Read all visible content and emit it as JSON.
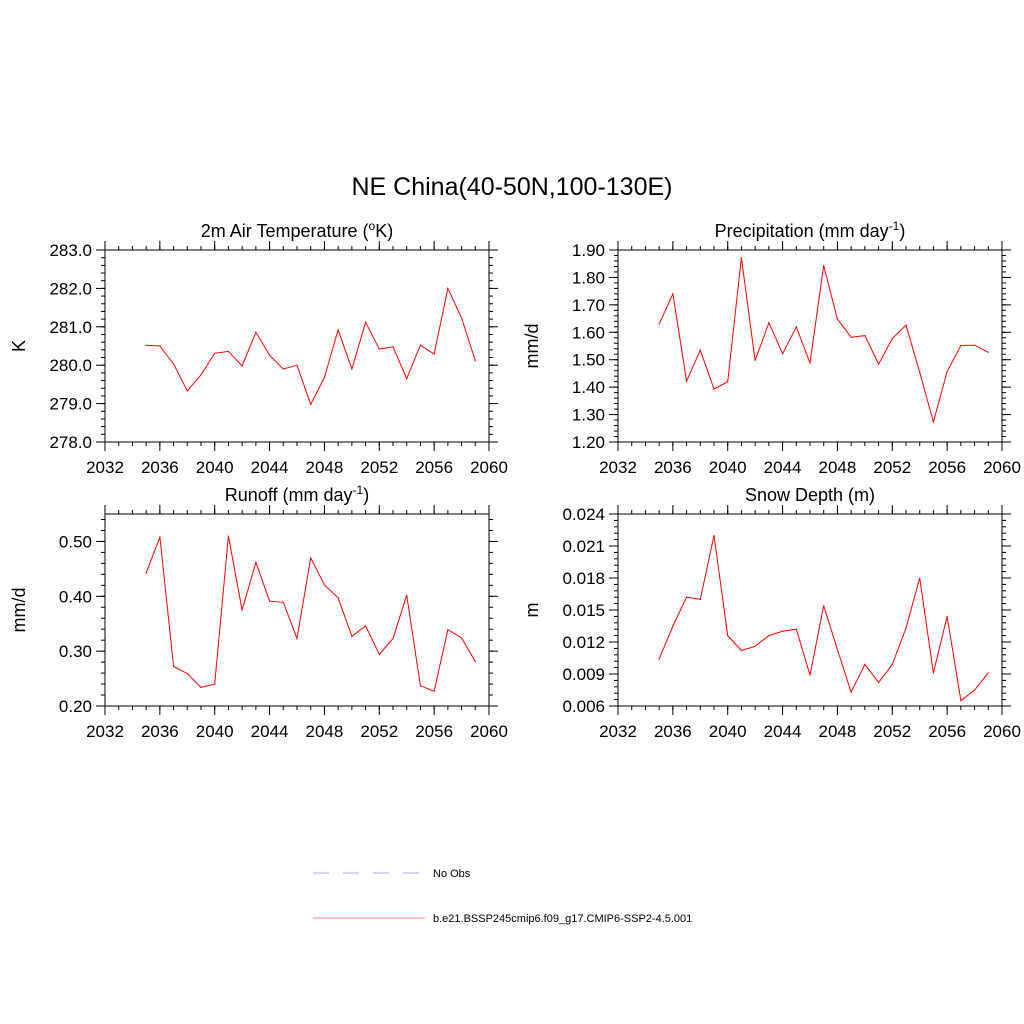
{
  "figure_title": "NE China(40-50N,100-130E)",
  "chart_data": [
    {
      "type": "line",
      "title": "2m Air Temperature (oK)",
      "title_base": "2m Air Temperature (",
      "title_sup": "o",
      "title_end": "K)",
      "ylabel": "K",
      "xlim": [
        2032,
        2060
      ],
      "ylim": [
        278.0,
        283.0
      ],
      "xticks": [
        2032,
        2036,
        2040,
        2044,
        2048,
        2052,
        2056,
        2060
      ],
      "yticks": [
        278.0,
        279.0,
        280.0,
        281.0,
        282.0,
        283.0
      ],
      "ytick_labels": [
        "278.0",
        "279.0",
        "280.0",
        "281.0",
        "282.0",
        "283.0"
      ],
      "series": [
        {
          "name": "b.e21.BSSP245cmip6.f09_g17.CMIP6-SSP2-4.5.001",
          "color": "#ff0000",
          "x": [
            2035,
            2036,
            2037,
            2038,
            2039,
            2040,
            2041,
            2042,
            2043,
            2044,
            2045,
            2046,
            2047,
            2048,
            2049,
            2050,
            2051,
            2052,
            2053,
            2054,
            2055,
            2056,
            2057,
            2058,
            2059
          ],
          "y": [
            280.52,
            280.5,
            280.03,
            279.33,
            279.75,
            280.31,
            280.36,
            279.98,
            280.86,
            280.26,
            279.9,
            280.0,
            278.98,
            279.68,
            280.92,
            279.9,
            281.12,
            280.42,
            280.48,
            279.65,
            280.52,
            280.29,
            282.0,
            281.23,
            280.12
          ]
        }
      ]
    },
    {
      "type": "line",
      "title": "Precipitation (mm day-1)",
      "title_base": "Precipitation (mm day",
      "title_sup": "-1",
      "title_end": ")",
      "ylabel": "mm/d",
      "xlim": [
        2032,
        2060
      ],
      "ylim": [
        1.2,
        1.9
      ],
      "xticks": [
        2032,
        2036,
        2040,
        2044,
        2048,
        2052,
        2056,
        2060
      ],
      "yticks": [
        1.2,
        1.3,
        1.4,
        1.5,
        1.6,
        1.7,
        1.8,
        1.9
      ],
      "ytick_labels": [
        "1.20",
        "1.30",
        "1.40",
        "1.50",
        "1.60",
        "1.70",
        "1.80",
        "1.90"
      ],
      "series": [
        {
          "name": "b.e21.BSSP245cmip6.f09_g17.CMIP6-SSP2-4.5.001",
          "color": "#ff0000",
          "x": [
            2035,
            2036,
            2037,
            2038,
            2039,
            2040,
            2041,
            2042,
            2043,
            2044,
            2045,
            2046,
            2047,
            2048,
            2049,
            2050,
            2051,
            2052,
            2053,
            2054,
            2055,
            2056,
            2057,
            2058,
            2059
          ],
          "y": [
            1.63,
            1.74,
            1.422,
            1.535,
            1.393,
            1.42,
            1.872,
            1.497,
            1.635,
            1.522,
            1.62,
            1.488,
            1.843,
            1.648,
            1.582,
            1.588,
            1.484,
            1.577,
            1.626,
            1.455,
            1.273,
            1.457,
            1.552,
            1.553,
            1.527
          ]
        }
      ]
    },
    {
      "type": "line",
      "title": "Runoff (mm day-1)",
      "title_base": "Runoff (mm day",
      "title_sup": "-1",
      "title_end": ")",
      "ylabel": "mm/d",
      "xlim": [
        2032,
        2060
      ],
      "ylim": [
        0.2,
        0.55
      ],
      "xticks": [
        2032,
        2036,
        2040,
        2044,
        2048,
        2052,
        2056,
        2060
      ],
      "yticks": [
        0.2,
        0.3,
        0.4,
        0.5
      ],
      "ytick_labels": [
        "0.20",
        "0.30",
        "0.40",
        "0.50"
      ],
      "series": [
        {
          "name": "b.e21.BSSP245cmip6.f09_g17.CMIP6-SSP2-4.5.001",
          "color": "#ff0000",
          "x": [
            2035,
            2036,
            2037,
            2038,
            2039,
            2040,
            2041,
            2042,
            2043,
            2044,
            2045,
            2046,
            2047,
            2048,
            2049,
            2050,
            2051,
            2052,
            2053,
            2054,
            2055,
            2056,
            2057,
            2058,
            2059
          ],
          "y": [
            0.442,
            0.508,
            0.272,
            0.259,
            0.234,
            0.24,
            0.51,
            0.375,
            0.462,
            0.391,
            0.389,
            0.323,
            0.47,
            0.421,
            0.397,
            0.327,
            0.346,
            0.294,
            0.323,
            0.402,
            0.237,
            0.227,
            0.339,
            0.324,
            0.281
          ]
        }
      ]
    },
    {
      "type": "line",
      "title": "Snow Depth (m)",
      "ylabel": "m",
      "xlim": [
        2032,
        2060
      ],
      "ylim": [
        0.006,
        0.024
      ],
      "xticks": [
        2032,
        2036,
        2040,
        2044,
        2048,
        2052,
        2056,
        2060
      ],
      "yticks": [
        0.006,
        0.009,
        0.012,
        0.015,
        0.018,
        0.021,
        0.024
      ],
      "ytick_labels": [
        "0.006",
        "0.009",
        "0.012",
        "0.015",
        "0.018",
        "0.021",
        "0.024"
      ],
      "series": [
        {
          "name": "b.e21.BSSP245cmip6.f09_g17.CMIP6-SSP2-4.5.001",
          "color": "#ff0000",
          "x": [
            2035,
            2036,
            2037,
            2038,
            2039,
            2040,
            2041,
            2042,
            2043,
            2044,
            2045,
            2046,
            2047,
            2048,
            2049,
            2050,
            2051,
            2052,
            2053,
            2054,
            2055,
            2056,
            2057,
            2058,
            2059
          ],
          "y": [
            0.0104,
            0.0135,
            0.0162,
            0.016,
            0.022,
            0.0126,
            0.0112,
            0.0116,
            0.0126,
            0.013,
            0.0132,
            0.0089,
            0.0154,
            0.0113,
            0.0073,
            0.0099,
            0.0082,
            0.0099,
            0.0133,
            0.018,
            0.0091,
            0.0144,
            0.0065,
            0.0075,
            0.0091
          ]
        }
      ]
    }
  ],
  "legend": [
    {
      "label": "No Obs",
      "color": "#aaaaff",
      "style": "dashed"
    },
    {
      "label": "b.e21.BSSP245cmip6.f09_g17.CMIP6-SSP2-4.5.001",
      "color": "#ff8080",
      "style": "solid"
    }
  ]
}
